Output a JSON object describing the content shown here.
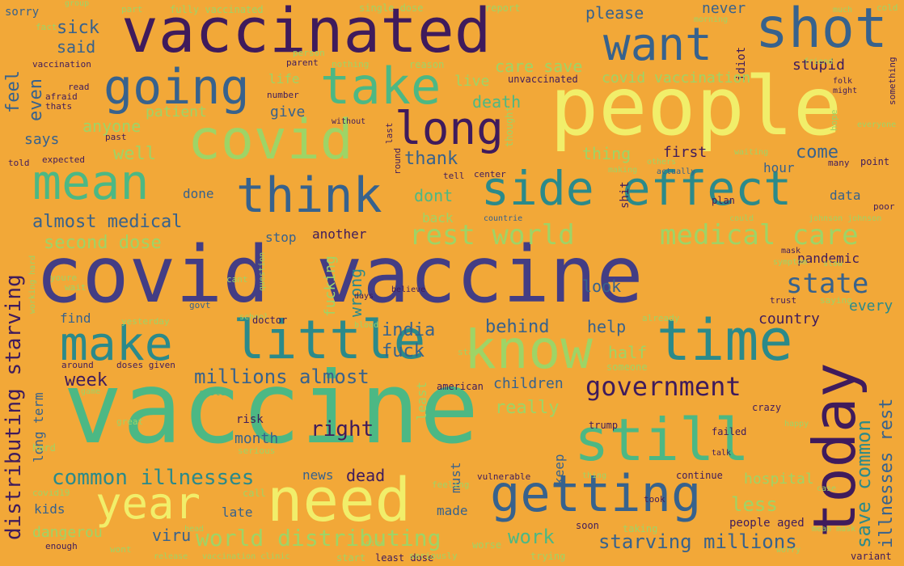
{
  "palette": {
    "background": "#f2a838",
    "dark_purple": "#3f1b5c",
    "indigo": "#433d84",
    "blue": "#37628d",
    "teal": "#2b8a8a",
    "green": "#4cb884",
    "light_green": "#9ed466",
    "yellow": "#f1ee6a"
  },
  "words": [
    "covid vaccine",
    "vaccine",
    "people",
    "vaccinated",
    "today",
    "shot",
    "still",
    "time",
    "know",
    "little",
    "make",
    "need",
    "getting",
    "side effect",
    "covid",
    "think",
    "mean",
    "long",
    "take",
    "going",
    "want",
    "year",
    "government",
    "state",
    "world distributing",
    "rest world",
    "medical care",
    "starving millions",
    "millions almost",
    "common illnesses",
    "distributing starving",
    "almost medical",
    "second dose",
    "save common",
    "illnesses rest",
    "india",
    "fuck",
    "behind",
    "help",
    "come",
    "right",
    "week",
    "viru",
    "work",
    "less",
    "dead",
    "news",
    "month",
    "look",
    "half",
    "really",
    "children",
    "country",
    "every",
    "pandemic",
    "stop",
    "another",
    "wrong",
    "fucking",
    "first",
    "hour",
    "data",
    "back",
    "dont",
    "thing",
    "thank",
    "well",
    "give",
    "patient",
    "anyone",
    "says",
    "feel",
    "even",
    "sick",
    "said",
    "sorry",
    "please",
    "never",
    "stupid",
    "idiot",
    "live",
    "life",
    "care save",
    "covid vaccination",
    "unvaccinated",
    "death",
    "done",
    "find",
    "kids",
    "late",
    "made",
    "must",
    "keep",
    "hospital",
    "dangerou",
    "long term",
    "least",
    "worse",
    "soon",
    "taking",
    "people aged",
    "trump",
    "failed",
    "crazy",
    "variant",
    "trying",
    "start",
    "least dose",
    "vaccination clinic",
    "enough",
    "wont",
    "hard",
    "around",
    "doses given",
    "system",
    "american",
    "someone",
    "staff",
    "risk",
    "serious",
    "call",
    "continue",
    "vulnerable",
    "took",
    "talk",
    "school",
    "yesterday",
    "govt",
    "doctor",
    "already",
    "trust",
    "saying",
    "symptom",
    "mask",
    "slow",
    "johnson johnson",
    "countrie",
    "shit",
    "plan",
    "could",
    "poor",
    "point",
    "many",
    "actually",
    "making",
    "tell",
    "center",
    "round",
    "last",
    "without",
    "thats",
    "afraid",
    "read",
    "number",
    "parent",
    "person",
    "reason",
    "nothing",
    "vaccination",
    "fact",
    "past",
    "told",
    "expected",
    "waiting",
    "everyone",
    "hope",
    "might",
    "folk",
    "friend",
    "something",
    "much",
    "cold",
    "morning",
    "single dose",
    "report",
    "part",
    "group",
    "fully vaccinated",
    "wait",
    "youre",
    "cant",
    "believe",
    "question",
    "days",
    "blood",
    "game",
    "working hard",
    "thought",
    "others",
    "seriously",
    "mean mask",
    "great",
    "feeling",
    "covid19",
    "case",
    "happy",
    "thing",
    "died",
    "worry",
    "head",
    "release",
    "second"
  ]
}
